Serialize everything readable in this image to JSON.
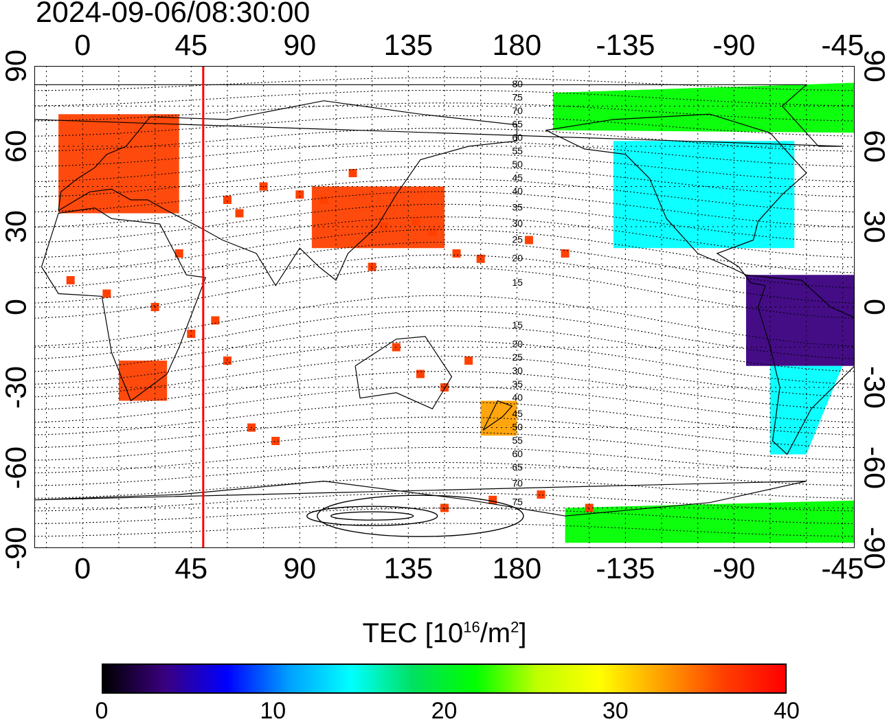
{
  "title": "2024-09-06/08:30:00",
  "lon_ticks": [
    "0",
    "45",
    "90",
    "135",
    "180",
    "-135",
    "-90",
    "-45"
  ],
  "lat_ticks": [
    "90",
    "60",
    "30",
    "0",
    "-30",
    "-60",
    "-90"
  ],
  "magnetic_labels_north": [
    "80",
    "75",
    "70",
    "65",
    "60",
    "55",
    "50",
    "45",
    "40",
    "35",
    "30",
    "25",
    "20",
    "15"
  ],
  "magnetic_labels_south": [
    "15",
    "20",
    "25",
    "30",
    "35",
    "40",
    "45",
    "50",
    "55",
    "60",
    "65",
    "70",
    "75"
  ],
  "colorbar": {
    "label_main": "TEC  [10",
    "label_exp1": "16",
    "label_mid": "/m",
    "label_exp2": "2",
    "label_end": "]",
    "ticks": [
      "0",
      "10",
      "20",
      "30",
      "40"
    ],
    "range": [
      0,
      40
    ],
    "colors": [
      "#000000",
      "#3a0080",
      "#0000ff",
      "#00a0ff",
      "#00ffff",
      "#00e060",
      "#00ff00",
      "#c0ff00",
      "#ffff00",
      "#ffa000",
      "#ff4000",
      "#ff0000"
    ]
  },
  "map": {
    "lon_range": [
      -20,
      320
    ],
    "lat_range": [
      -90,
      90
    ],
    "marker_longitude": 50,
    "marker_color": "#ff0000"
  },
  "tec_regions": [
    {
      "region": "europe",
      "tec": 38
    },
    {
      "region": "east-asia",
      "tec": 38
    },
    {
      "region": "africa-south",
      "tec": 38
    },
    {
      "region": "north-america",
      "tec": 14
    },
    {
      "region": "greenland-canada-north",
      "tec": 22
    },
    {
      "region": "south-america-north",
      "tec": 4
    },
    {
      "region": "south-america-south",
      "tec": 13
    },
    {
      "region": "antarctic-pacific",
      "tec": 22
    },
    {
      "region": "new-zealand",
      "tec": 32
    }
  ]
}
